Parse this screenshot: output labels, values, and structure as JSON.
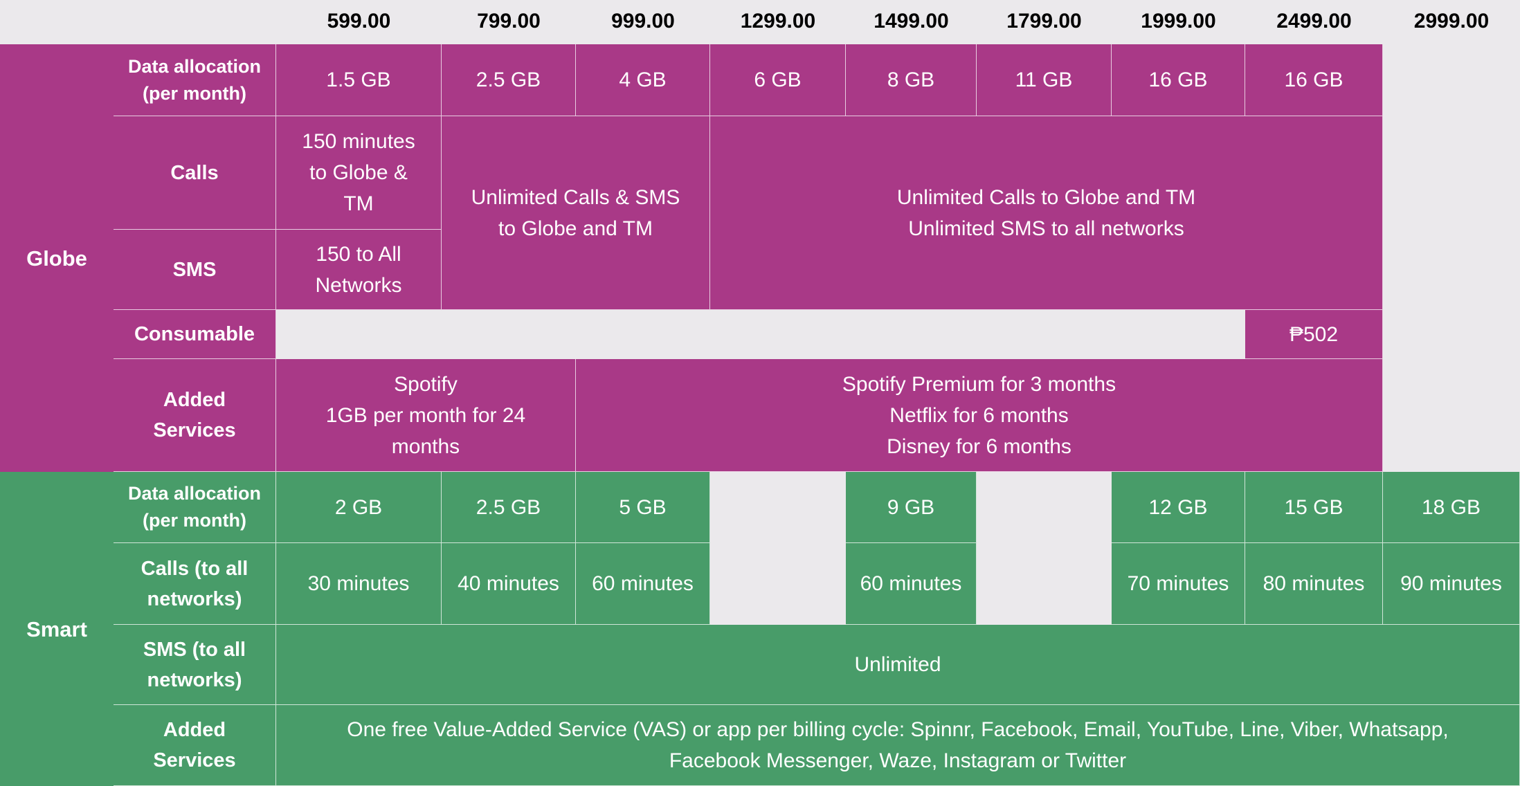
{
  "prices": [
    "599.00",
    "799.00",
    "999.00",
    "1299.00",
    "1499.00",
    "1799.00",
    "1999.00",
    "2499.00",
    "2999.00"
  ],
  "colors": {
    "globe": "#A93987",
    "smart": "#489C69",
    "background": "#EBE9EC"
  },
  "globe": {
    "name": "Globe",
    "labels": {
      "data": "Data allocation\n(per month)",
      "calls": "Calls",
      "sms": "SMS",
      "consumable": "Consumable",
      "added": "Added\nServices"
    },
    "data": [
      "1.5 GB",
      "2.5 GB",
      "4 GB",
      "6 GB",
      "8 GB",
      "11 GB",
      "16 GB",
      "16 GB"
    ],
    "calls_599": "150 minutes\nto Globe &\nTM",
    "sms_599": "150 to All\nNetworks",
    "calls_sms_799_999": "Unlimited Calls & SMS\nto Globe and TM",
    "calls_sms_1299_2499": "Unlimited Calls to Globe and TM\nUnlimited SMS to all networks",
    "consumable_2499": "₱502",
    "added_599_799": "Spotify\n1GB per month for 24\nmonths",
    "added_999_2499": "Spotify Premium for 3 months\nNetflix for 6 months\nDisney for 6 months"
  },
  "smart": {
    "name": "Smart",
    "labels": {
      "data": "Data allocation\n(per month)",
      "calls": "Calls (to all\nnetworks)",
      "sms": "SMS (to all\nnetworks)",
      "added": "Added\nServices"
    },
    "data": {
      "599": "2 GB",
      "799": "2.5 GB",
      "999": "5 GB",
      "1499": "9 GB",
      "1999": "12 GB",
      "2499": "15 GB",
      "2999": "18 GB"
    },
    "calls": {
      "599": "30 minutes",
      "799": "40 minutes",
      "999": "60 minutes",
      "1499": "60 minutes",
      "1999": "70 minutes",
      "2499": "80 minutes",
      "2999": "90 minutes"
    },
    "sms": "Unlimited",
    "added": "One free Value-Added Service (VAS) or app per billing cycle: Spinnr, Facebook, Email, YouTube, Line, Viber, Whatsapp,\nFacebook Messenger, Waze, Instagram or Twitter"
  }
}
